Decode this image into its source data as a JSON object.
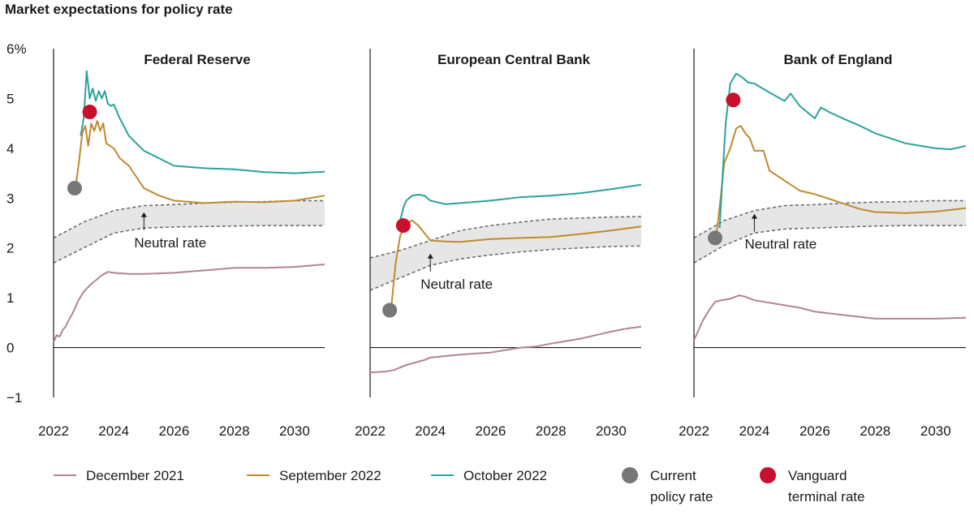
{
  "title": "Market expectations for policy rate",
  "chart_data": {
    "type": "line",
    "title": "Market expectations for policy rate",
    "ylim": [
      -1,
      6
    ],
    "yticks": [
      -1,
      0,
      1,
      2,
      3,
      4,
      5,
      6
    ],
    "ytick_labels": [
      "−1",
      "0",
      "1",
      "2",
      "3",
      "4",
      "5",
      "6%"
    ],
    "xlim": [
      2022,
      2031
    ],
    "xticks": [
      2022,
      2024,
      2026,
      2028,
      2030
    ],
    "xtick_labels": [
      "2022",
      "2024",
      "2026",
      "2028",
      "2030"
    ],
    "colors": {
      "December 2021": "#b2848f",
      "September 2022": "#c08a2e",
      "October 2022": "#2aa39a",
      "Current policy rate": "#777777",
      "Vanguard terminal rate": "#c8102e",
      "neutral_band": "#e6e6e6"
    },
    "legend": [
      {
        "label": "December 2021",
        "kind": "line",
        "key": "December 2021"
      },
      {
        "label": "September 2022",
        "kind": "line",
        "key": "September 2022"
      },
      {
        "label": "October 2022",
        "kind": "line",
        "key": "October 2022"
      },
      {
        "label": "Current policy rate",
        "line1": "Current",
        "line2": "policy rate",
        "kind": "dot",
        "key": "Current policy rate"
      },
      {
        "label": "Vanguard terminal rate",
        "line1": "Vanguard",
        "line2": "terminal rate",
        "kind": "dot",
        "key": "Vanguard terminal rate"
      }
    ],
    "panels": [
      {
        "title": "Federal Reserve",
        "annotation": {
          "text": "Neutral rate",
          "arrow_x": 2025.0,
          "arrow_y": 2.78
        },
        "neutral_band": {
          "x": [
            2022.0,
            2023.0,
            2024.0,
            2025.0,
            2026.0,
            2027.0,
            2028.0,
            2029.0,
            2030.0,
            2031.0
          ],
          "upper": [
            2.2,
            2.52,
            2.75,
            2.85,
            2.87,
            2.9,
            2.92,
            2.93,
            2.95,
            2.95
          ],
          "lower": [
            1.7,
            2.0,
            2.3,
            2.4,
            2.42,
            2.43,
            2.44,
            2.45,
            2.45,
            2.45
          ]
        },
        "series": [
          {
            "name": "December 2021",
            "x": [
              2022.0,
              2022.1,
              2022.2,
              2022.3,
              2022.4,
              2022.5,
              2022.6,
              2022.7,
              2022.8,
              2022.9,
              2023.0,
              2023.2,
              2023.4,
              2023.6,
              2023.8,
              2024.0,
              2024.5,
              2025.0,
              2026.0,
              2027.0,
              2028.0,
              2029.0,
              2030.0,
              2031.0
            ],
            "y": [
              0.1,
              0.25,
              0.22,
              0.35,
              0.42,
              0.55,
              0.65,
              0.78,
              0.92,
              1.02,
              1.12,
              1.25,
              1.35,
              1.45,
              1.52,
              1.5,
              1.48,
              1.48,
              1.5,
              1.55,
              1.6,
              1.6,
              1.62,
              1.67
            ]
          },
          {
            "name": "September 2022",
            "x": [
              2022.75,
              2022.85,
              2022.95,
              2023.05,
              2023.15,
              2023.25,
              2023.35,
              2023.45,
              2023.55,
              2023.65,
              2023.75,
              2024.0,
              2024.2,
              2024.5,
              2025.0,
              2025.5,
              2026.0,
              2027.0,
              2028.0,
              2029.0,
              2030.0,
              2031.0
            ],
            "y": [
              3.3,
              3.75,
              4.3,
              4.45,
              4.05,
              4.5,
              4.35,
              4.55,
              4.35,
              4.5,
              4.1,
              4.0,
              3.8,
              3.65,
              3.2,
              3.05,
              2.95,
              2.9,
              2.93,
              2.92,
              2.95,
              3.05
            ]
          },
          {
            "name": "October 2022",
            "x": [
              2022.9,
              2023.0,
              2023.1,
              2023.2,
              2023.3,
              2023.4,
              2023.5,
              2023.6,
              2023.7,
              2023.8,
              2023.9,
              2024.0,
              2024.2,
              2024.5,
              2025.0,
              2025.5,
              2026.0,
              2027.0,
              2028.0,
              2029.0,
              2030.0,
              2031.0
            ],
            "y": [
              4.25,
              4.6,
              5.55,
              5.0,
              5.2,
              4.95,
              5.15,
              5.0,
              5.15,
              4.9,
              4.85,
              4.88,
              4.6,
              4.25,
              3.95,
              3.8,
              3.65,
              3.6,
              3.58,
              3.52,
              3.5,
              3.53
            ]
          }
        ],
        "current_policy_rate": {
          "x": 2022.7,
          "y": 3.2
        },
        "vanguard_terminal_rate": {
          "x": 2023.2,
          "y": 4.73
        }
      },
      {
        "title": "European Central Bank",
        "annotation": {
          "text": "Neutral rate",
          "arrow_x": 2024.0,
          "arrow_y": 1.95
        },
        "neutral_band": {
          "x": [
            2022.0,
            2023.0,
            2024.0,
            2025.0,
            2026.0,
            2027.0,
            2028.0,
            2029.0,
            2030.0,
            2031.0
          ],
          "upper": [
            1.8,
            1.95,
            2.15,
            2.35,
            2.45,
            2.52,
            2.58,
            2.6,
            2.62,
            2.63
          ],
          "lower": [
            1.15,
            1.4,
            1.65,
            1.78,
            1.86,
            1.92,
            1.97,
            2.0,
            2.03,
            2.04
          ]
        },
        "series": [
          {
            "name": "December 2021",
            "x": [
              2022.0,
              2022.5,
              2022.8,
              2023.0,
              2023.2,
              2023.5,
              2023.8,
              2024.0,
              2024.5,
              2025.0,
              2025.5,
              2026.0,
              2026.5,
              2027.0,
              2027.5,
              2028.0,
              2028.5,
              2029.0,
              2029.5,
              2030.0,
              2030.5,
              2031.0
            ],
            "y": [
              -0.5,
              -0.48,
              -0.45,
              -0.4,
              -0.35,
              -0.3,
              -0.25,
              -0.2,
              -0.17,
              -0.14,
              -0.12,
              -0.1,
              -0.05,
              0.0,
              0.02,
              0.08,
              0.13,
              0.18,
              0.25,
              0.32,
              0.38,
              0.42
            ]
          },
          {
            "name": "September 2022",
            "x": [
              2022.7,
              2022.85,
              2023.0,
              2023.2,
              2023.4,
              2023.6,
              2023.8,
              2024.0,
              2024.5,
              2025.0,
              2026.0,
              2027.0,
              2028.0,
              2029.0,
              2030.0,
              2031.0
            ],
            "y": [
              0.8,
              1.7,
              2.25,
              2.5,
              2.55,
              2.45,
              2.3,
              2.15,
              2.13,
              2.12,
              2.18,
              2.2,
              2.22,
              2.28,
              2.35,
              2.43
            ]
          },
          {
            "name": "October 2022",
            "x": [
              2022.9,
              2023.0,
              2023.1,
              2023.2,
              2023.4,
              2023.6,
              2023.8,
              2024.0,
              2024.5,
              2025.0,
              2026.0,
              2027.0,
              2028.0,
              2029.0,
              2030.0,
              2031.0
            ],
            "y": [
              2.4,
              2.55,
              2.8,
              2.95,
              3.05,
              3.07,
              3.05,
              2.95,
              2.88,
              2.9,
              2.95,
              3.02,
              3.05,
              3.1,
              3.18,
              3.27
            ]
          }
        ],
        "current_policy_rate": {
          "x": 2022.65,
          "y": 0.75
        },
        "vanguard_terminal_rate": {
          "x": 2023.1,
          "y": 2.45
        }
      },
      {
        "title": "Bank of England",
        "annotation": {
          "text": "Neutral rate",
          "arrow_x": 2024.0,
          "arrow_y": 2.75
        },
        "neutral_band": {
          "x": [
            2022.0,
            2023.0,
            2024.0,
            2025.0,
            2026.0,
            2027.0,
            2028.0,
            2029.0,
            2030.0,
            2031.0
          ],
          "upper": [
            2.2,
            2.55,
            2.75,
            2.85,
            2.87,
            2.9,
            2.92,
            2.93,
            2.95,
            2.95
          ],
          "lower": [
            1.7,
            2.05,
            2.3,
            2.38,
            2.4,
            2.42,
            2.44,
            2.45,
            2.45,
            2.45
          ]
        },
        "series": [
          {
            "name": "December 2021",
            "x": [
              2022.0,
              2022.15,
              2022.3,
              2022.5,
              2022.7,
              2022.9,
              2023.2,
              2023.5,
              2023.7,
              2024.0,
              2024.5,
              2025.0,
              2025.5,
              2026.0,
              2027.0,
              2028.0,
              2029.0,
              2030.0,
              2031.0
            ],
            "y": [
              0.15,
              0.35,
              0.55,
              0.75,
              0.92,
              0.95,
              0.98,
              1.05,
              1.02,
              0.95,
              0.9,
              0.85,
              0.8,
              0.72,
              0.65,
              0.58,
              0.58,
              0.58,
              0.6
            ]
          },
          {
            "name": "September 2022",
            "x": [
              2022.75,
              2022.9,
              2023.0,
              2023.2,
              2023.4,
              2023.55,
              2023.7,
              2023.85,
              2024.0,
              2024.3,
              2024.5,
              2025.0,
              2025.5,
              2026.0,
              2026.5,
              2027.0,
              2027.5,
              2028.0,
              2029.0,
              2030.0,
              2031.0
            ],
            "y": [
              2.3,
              3.1,
              3.7,
              4.0,
              4.4,
              4.45,
              4.3,
              4.2,
              3.95,
              3.95,
              3.55,
              3.35,
              3.15,
              3.08,
              2.98,
              2.88,
              2.78,
              2.72,
              2.7,
              2.73,
              2.8
            ]
          },
          {
            "name": "October 2022",
            "x": [
              2022.85,
              2022.95,
              2023.05,
              2023.2,
              2023.4,
              2023.6,
              2023.8,
              2024.0,
              2024.5,
              2025.0,
              2025.2,
              2025.5,
              2026.0,
              2026.2,
              2026.5,
              2027.0,
              2027.5,
              2028.0,
              2029.0,
              2030.0,
              2030.5,
              2031.0
            ],
            "y": [
              2.4,
              3.5,
              4.5,
              5.3,
              5.5,
              5.42,
              5.32,
              5.3,
              5.12,
              4.95,
              5.1,
              4.85,
              4.6,
              4.82,
              4.72,
              4.58,
              4.45,
              4.3,
              4.1,
              4.0,
              3.98,
              4.05
            ]
          }
        ],
        "current_policy_rate": {
          "x": 2022.7,
          "y": 2.2
        },
        "vanguard_terminal_rate": {
          "x": 2023.3,
          "y": 4.97
        }
      }
    ]
  }
}
